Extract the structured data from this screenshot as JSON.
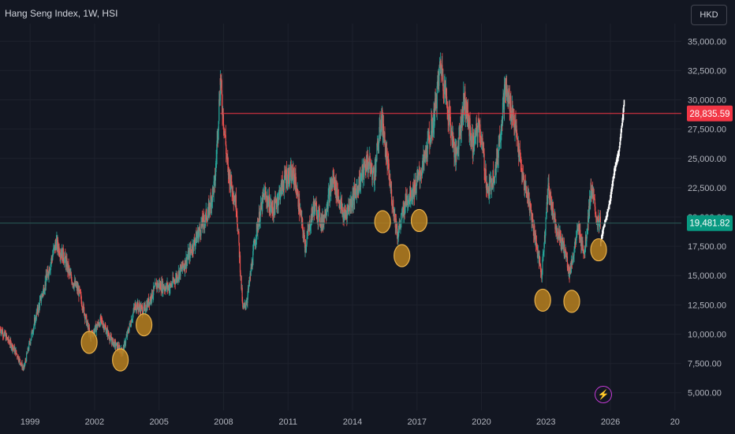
{
  "header": {
    "title": "Hang Seng Index, 1W, HSI",
    "currency": "HKD"
  },
  "icons": {
    "alert": "lightning-bolt-icon"
  },
  "colors": {
    "background": "#131722",
    "up": "#26a69a",
    "down": "#ef5350",
    "resistance": "#f23645",
    "current": "#089981",
    "marker": "#f2a93b",
    "projection": "#ffffff"
  },
  "chart_data": {
    "type": "candlestick",
    "x_ticks": [
      "1999",
      "2002",
      "2005",
      "2008",
      "2011",
      "2014",
      "2017",
      "2020",
      "2023",
      "2026",
      "20"
    ],
    "y_ticks": [
      "35,000.00",
      "32,500.00",
      "30,000.00",
      "27,500.00",
      "25,000.00",
      "22,500.00",
      "20,000.00",
      "17,500.00",
      "15,000.00",
      "12,500.00",
      "10,000.00",
      "7,500.00",
      "5,000.00"
    ],
    "ylim": [
      3500,
      36500
    ],
    "xlim": [
      1997.6,
      2029.3
    ],
    "price_path": [
      [
        1997.6,
        10500
      ],
      [
        1998.3,
        8600
      ],
      [
        1998.7,
        7000
      ],
      [
        1999.2,
        11000
      ],
      [
        1999.8,
        15000
      ],
      [
        2000.2,
        17800
      ],
      [
        2000.6,
        16500
      ],
      [
        2000.9,
        14800
      ],
      [
        2001.3,
        13500
      ],
      [
        2001.8,
        9800
      ],
      [
        2002.3,
        11200
      ],
      [
        2002.8,
        9400
      ],
      [
        2003.3,
        8500
      ],
      [
        2003.9,
        12500
      ],
      [
        2004.3,
        12000
      ],
      [
        2004.9,
        14200
      ],
      [
        2005.5,
        14000
      ],
      [
        2006.2,
        16000
      ],
      [
        2006.8,
        18500
      ],
      [
        2007.3,
        20500
      ],
      [
        2007.6,
        23000
      ],
      [
        2007.85,
        31600
      ],
      [
        2008.2,
        24000
      ],
      [
        2008.6,
        21000
      ],
      [
        2008.9,
        12000
      ],
      [
        2009.1,
        13000
      ],
      [
        2009.5,
        18500
      ],
      [
        2009.9,
        22000
      ],
      [
        2010.3,
        20500
      ],
      [
        2010.9,
        23500
      ],
      [
        2011.3,
        23500
      ],
      [
        2011.8,
        17500
      ],
      [
        2012.2,
        21000
      ],
      [
        2012.6,
        19500
      ],
      [
        2013.1,
        23300
      ],
      [
        2013.6,
        20000
      ],
      [
        2014.1,
        22000
      ],
      [
        2014.7,
        24800
      ],
      [
        2015.0,
        23500
      ],
      [
        2015.35,
        28500
      ],
      [
        2015.8,
        22000
      ],
      [
        2016.1,
        18500
      ],
      [
        2016.5,
        21500
      ],
      [
        2016.9,
        22500
      ],
      [
        2017.3,
        24500
      ],
      [
        2017.8,
        28500
      ],
      [
        2018.1,
        33200
      ],
      [
        2018.5,
        28500
      ],
      [
        2018.8,
        25000
      ],
      [
        2019.2,
        30000
      ],
      [
        2019.6,
        26000
      ],
      [
        2019.9,
        28000
      ],
      [
        2020.3,
        22000
      ],
      [
        2020.7,
        24500
      ],
      [
        2021.1,
        31000
      ],
      [
        2021.5,
        28500
      ],
      [
        2021.9,
        23500
      ],
      [
        2022.2,
        21500
      ],
      [
        2022.8,
        15000
      ],
      [
        2023.1,
        22500
      ],
      [
        2023.5,
        19000
      ],
      [
        2023.9,
        17000
      ],
      [
        2024.1,
        15200
      ],
      [
        2024.5,
        19000
      ],
      [
        2024.8,
        17000
      ],
      [
        2025.1,
        22500
      ],
      [
        2025.4,
        19500
      ],
      [
        2025.55,
        19481
      ]
    ],
    "projection_path": [
      [
        2025.55,
        17800
      ],
      [
        2025.7,
        19200
      ],
      [
        2025.85,
        20200
      ],
      [
        2026.0,
        21500
      ],
      [
        2026.1,
        22800
      ],
      [
        2026.2,
        24000
      ],
      [
        2026.3,
        24800
      ],
      [
        2026.4,
        25500
      ],
      [
        2026.5,
        27200
      ],
      [
        2026.6,
        28800
      ],
      [
        2026.65,
        30000
      ]
    ],
    "resistance": {
      "value": 28835.59,
      "label": "28,835.59",
      "x_start": 2007.85
    },
    "current": {
      "value": 19481.82,
      "label": "19,481.82"
    },
    "markers": [
      [
        2001.75,
        9300
      ],
      [
        2003.2,
        7800
      ],
      [
        2004.3,
        10800
      ],
      [
        2015.4,
        19600
      ],
      [
        2016.3,
        16700
      ],
      [
        2017.1,
        19700
      ],
      [
        2022.85,
        12900
      ],
      [
        2024.2,
        12800
      ],
      [
        2025.45,
        17200
      ]
    ]
  }
}
